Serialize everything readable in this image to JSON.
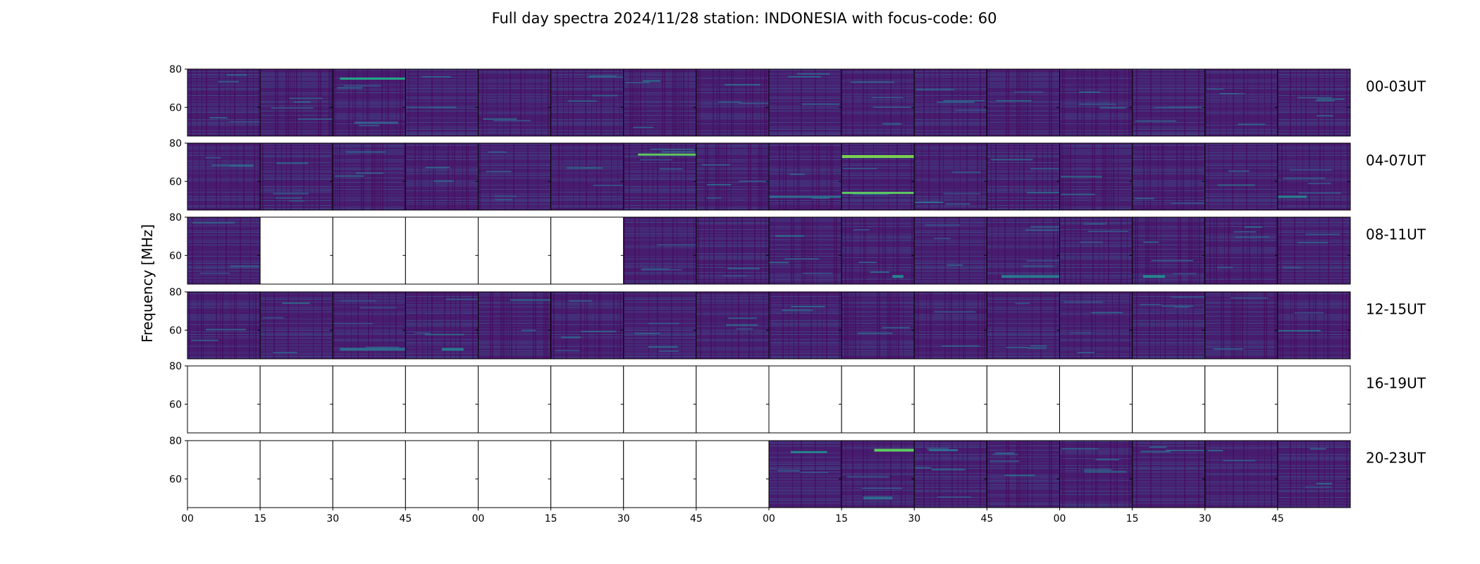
{
  "chart_data": {
    "type": "heatmap",
    "title": "Full day spectra 2024/11/28 station: INDONESIA with focus-code: 60",
    "ylabel": "Frequency [MHz]",
    "ylim": [
      45,
      80
    ],
    "y_ticks": [
      "80",
      "60"
    ],
    "x_tick_labels": [
      "00",
      "15",
      "30",
      "45",
      "00",
      "15",
      "30",
      "45",
      "00",
      "15",
      "30",
      "45",
      "00",
      "15",
      "30",
      "45"
    ],
    "colormap": "viridis",
    "row_labels": [
      "00-03UT",
      "04-07UT",
      "08-11UT",
      "12-15UT",
      "16-19UT",
      "20-23UT"
    ],
    "panels_per_row": 16,
    "data_available": [
      [
        1,
        1,
        1,
        1,
        1,
        1,
        1,
        1,
        1,
        1,
        1,
        1,
        1,
        1,
        1,
        1
      ],
      [
        1,
        1,
        1,
        1,
        1,
        1,
        1,
        1,
        1,
        1,
        1,
        1,
        1,
        1,
        1,
        1
      ],
      [
        1,
        0,
        0,
        0,
        0,
        0,
        1,
        1,
        1,
        1,
        1,
        1,
        1,
        1,
        1,
        1
      ],
      [
        1,
        1,
        1,
        1,
        1,
        1,
        1,
        1,
        1,
        1,
        1,
        1,
        1,
        1,
        1,
        1
      ],
      [
        0,
        0,
        0,
        0,
        0,
        0,
        0,
        0,
        0,
        0,
        0,
        0,
        0,
        0,
        0,
        0
      ],
      [
        0,
        0,
        0,
        0,
        0,
        0,
        0,
        0,
        1,
        1,
        1,
        1,
        1,
        1,
        1,
        1
      ]
    ]
  }
}
